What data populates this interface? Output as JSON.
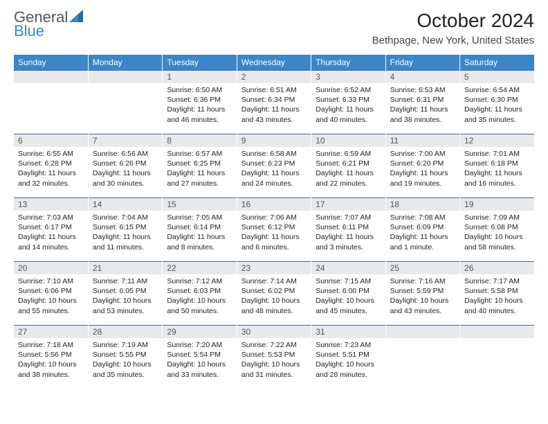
{
  "logo": {
    "top": "General",
    "bottom": "Blue"
  },
  "title": "October 2024",
  "location": "Bethpage, New York, United States",
  "colors": {
    "header_bg": "#3a86c8",
    "header_text": "#ffffff",
    "daynum_bg": "#e9e9e9",
    "border": "#3a6a9a",
    "logo_top": "#555555",
    "logo_bottom": "#3a86c8",
    "text": "#222222"
  },
  "day_headers": [
    "Sunday",
    "Monday",
    "Tuesday",
    "Wednesday",
    "Thursday",
    "Friday",
    "Saturday"
  ],
  "weeks": [
    [
      {
        "day": "",
        "sunrise": "",
        "sunset": "",
        "daylight": ""
      },
      {
        "day": "",
        "sunrise": "",
        "sunset": "",
        "daylight": ""
      },
      {
        "day": "1",
        "sunrise": "Sunrise: 6:50 AM",
        "sunset": "Sunset: 6:36 PM",
        "daylight": "Daylight: 11 hours and 46 minutes."
      },
      {
        "day": "2",
        "sunrise": "Sunrise: 6:51 AM",
        "sunset": "Sunset: 6:34 PM",
        "daylight": "Daylight: 11 hours and 43 minutes."
      },
      {
        "day": "3",
        "sunrise": "Sunrise: 6:52 AM",
        "sunset": "Sunset: 6:33 PM",
        "daylight": "Daylight: 11 hours and 40 minutes."
      },
      {
        "day": "4",
        "sunrise": "Sunrise: 6:53 AM",
        "sunset": "Sunset: 6:31 PM",
        "daylight": "Daylight: 11 hours and 38 minutes."
      },
      {
        "day": "5",
        "sunrise": "Sunrise: 6:54 AM",
        "sunset": "Sunset: 6:30 PM",
        "daylight": "Daylight: 11 hours and 35 minutes."
      }
    ],
    [
      {
        "day": "6",
        "sunrise": "Sunrise: 6:55 AM",
        "sunset": "Sunset: 6:28 PM",
        "daylight": "Daylight: 11 hours and 32 minutes."
      },
      {
        "day": "7",
        "sunrise": "Sunrise: 6:56 AM",
        "sunset": "Sunset: 6:26 PM",
        "daylight": "Daylight: 11 hours and 30 minutes."
      },
      {
        "day": "8",
        "sunrise": "Sunrise: 6:57 AM",
        "sunset": "Sunset: 6:25 PM",
        "daylight": "Daylight: 11 hours and 27 minutes."
      },
      {
        "day": "9",
        "sunrise": "Sunrise: 6:58 AM",
        "sunset": "Sunset: 6:23 PM",
        "daylight": "Daylight: 11 hours and 24 minutes."
      },
      {
        "day": "10",
        "sunrise": "Sunrise: 6:59 AM",
        "sunset": "Sunset: 6:21 PM",
        "daylight": "Daylight: 11 hours and 22 minutes."
      },
      {
        "day": "11",
        "sunrise": "Sunrise: 7:00 AM",
        "sunset": "Sunset: 6:20 PM",
        "daylight": "Daylight: 11 hours and 19 minutes."
      },
      {
        "day": "12",
        "sunrise": "Sunrise: 7:01 AM",
        "sunset": "Sunset: 6:18 PM",
        "daylight": "Daylight: 11 hours and 16 minutes."
      }
    ],
    [
      {
        "day": "13",
        "sunrise": "Sunrise: 7:03 AM",
        "sunset": "Sunset: 6:17 PM",
        "daylight": "Daylight: 11 hours and 14 minutes."
      },
      {
        "day": "14",
        "sunrise": "Sunrise: 7:04 AM",
        "sunset": "Sunset: 6:15 PM",
        "daylight": "Daylight: 11 hours and 11 minutes."
      },
      {
        "day": "15",
        "sunrise": "Sunrise: 7:05 AM",
        "sunset": "Sunset: 6:14 PM",
        "daylight": "Daylight: 11 hours and 8 minutes."
      },
      {
        "day": "16",
        "sunrise": "Sunrise: 7:06 AM",
        "sunset": "Sunset: 6:12 PM",
        "daylight": "Daylight: 11 hours and 6 minutes."
      },
      {
        "day": "17",
        "sunrise": "Sunrise: 7:07 AM",
        "sunset": "Sunset: 6:11 PM",
        "daylight": "Daylight: 11 hours and 3 minutes."
      },
      {
        "day": "18",
        "sunrise": "Sunrise: 7:08 AM",
        "sunset": "Sunset: 6:09 PM",
        "daylight": "Daylight: 11 hours and 1 minute."
      },
      {
        "day": "19",
        "sunrise": "Sunrise: 7:09 AM",
        "sunset": "Sunset: 6:08 PM",
        "daylight": "Daylight: 10 hours and 58 minutes."
      }
    ],
    [
      {
        "day": "20",
        "sunrise": "Sunrise: 7:10 AM",
        "sunset": "Sunset: 6:06 PM",
        "daylight": "Daylight: 10 hours and 55 minutes."
      },
      {
        "day": "21",
        "sunrise": "Sunrise: 7:11 AM",
        "sunset": "Sunset: 6:05 PM",
        "daylight": "Daylight: 10 hours and 53 minutes."
      },
      {
        "day": "22",
        "sunrise": "Sunrise: 7:12 AM",
        "sunset": "Sunset: 6:03 PM",
        "daylight": "Daylight: 10 hours and 50 minutes."
      },
      {
        "day": "23",
        "sunrise": "Sunrise: 7:14 AM",
        "sunset": "Sunset: 6:02 PM",
        "daylight": "Daylight: 10 hours and 48 minutes."
      },
      {
        "day": "24",
        "sunrise": "Sunrise: 7:15 AM",
        "sunset": "Sunset: 6:00 PM",
        "daylight": "Daylight: 10 hours and 45 minutes."
      },
      {
        "day": "25",
        "sunrise": "Sunrise: 7:16 AM",
        "sunset": "Sunset: 5:59 PM",
        "daylight": "Daylight: 10 hours and 43 minutes."
      },
      {
        "day": "26",
        "sunrise": "Sunrise: 7:17 AM",
        "sunset": "Sunset: 5:58 PM",
        "daylight": "Daylight: 10 hours and 40 minutes."
      }
    ],
    [
      {
        "day": "27",
        "sunrise": "Sunrise: 7:18 AM",
        "sunset": "Sunset: 5:56 PM",
        "daylight": "Daylight: 10 hours and 38 minutes."
      },
      {
        "day": "28",
        "sunrise": "Sunrise: 7:19 AM",
        "sunset": "Sunset: 5:55 PM",
        "daylight": "Daylight: 10 hours and 35 minutes."
      },
      {
        "day": "29",
        "sunrise": "Sunrise: 7:20 AM",
        "sunset": "Sunset: 5:54 PM",
        "daylight": "Daylight: 10 hours and 33 minutes."
      },
      {
        "day": "30",
        "sunrise": "Sunrise: 7:22 AM",
        "sunset": "Sunset: 5:53 PM",
        "daylight": "Daylight: 10 hours and 31 minutes."
      },
      {
        "day": "31",
        "sunrise": "Sunrise: 7:23 AM",
        "sunset": "Sunset: 5:51 PM",
        "daylight": "Daylight: 10 hours and 28 minutes."
      },
      {
        "day": "",
        "sunrise": "",
        "sunset": "",
        "daylight": ""
      },
      {
        "day": "",
        "sunrise": "",
        "sunset": "",
        "daylight": ""
      }
    ]
  ]
}
